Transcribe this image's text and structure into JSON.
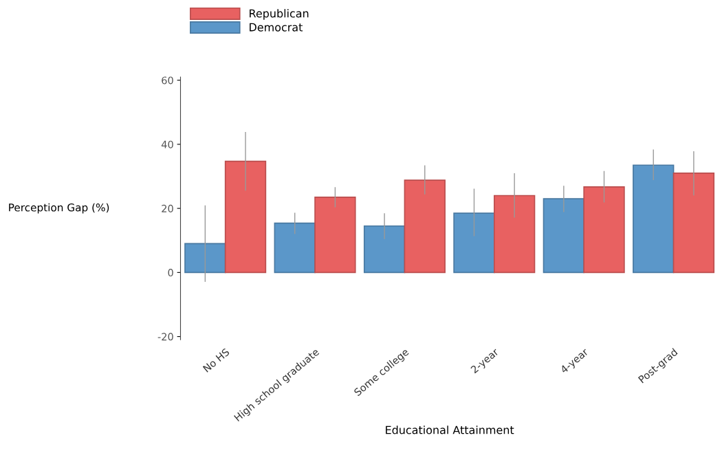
{
  "chart_data": {
    "type": "bar",
    "xlabel": "Educational Attainment",
    "ylabel": "Perception Gap (%)",
    "categories": [
      "No HS",
      "High school graduate",
      "Some college",
      "2-year",
      "4-year",
      "Post-grad"
    ],
    "series": [
      {
        "name": "Democrat",
        "color": "#5b97c9",
        "values": [
          9.0,
          15.4,
          14.5,
          18.5,
          23.0,
          33.5
        ],
        "errors": [
          [
            -2.8,
            20.8
          ],
          [
            12.2,
            18.5
          ],
          [
            10.6,
            18.3
          ],
          [
            11.5,
            26.0
          ],
          [
            19.0,
            26.9
          ],
          [
            29.0,
            38.2
          ]
        ]
      },
      {
        "name": "Republican",
        "color": "#e86161",
        "values": [
          34.7,
          23.5,
          28.8,
          24.0,
          26.7,
          31.0
        ],
        "errors": [
          [
            25.7,
            43.7
          ],
          [
            20.5,
            26.5
          ],
          [
            24.5,
            33.3
          ],
          [
            17.3,
            30.8
          ],
          [
            22.0,
            31.5
          ],
          [
            24.2,
            37.7
          ]
        ]
      }
    ],
    "ylim": [
      -21,
      61
    ],
    "yticks": [
      -20,
      0,
      20,
      40,
      60
    ],
    "grid": false,
    "legend": "top left"
  }
}
